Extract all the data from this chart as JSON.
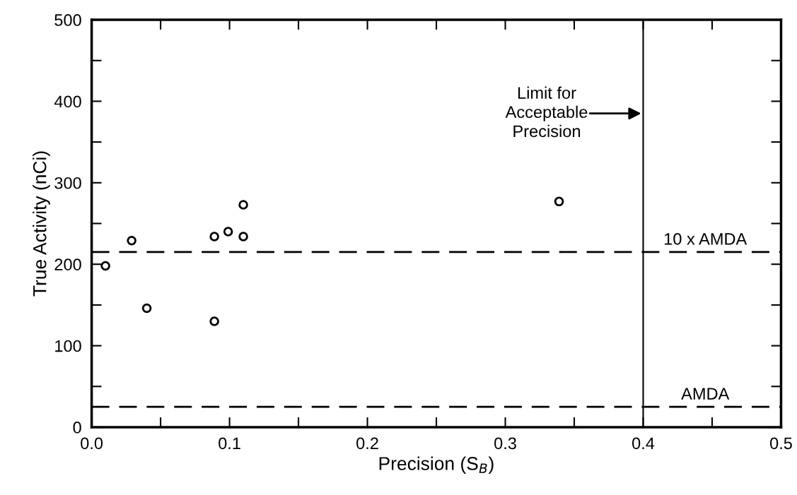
{
  "chart_data": {
    "type": "scatter",
    "xlabel": "Precision (S$_{B}$)",
    "ylabel": "True Activity (nCi)",
    "x": [
      0.01,
      0.029,
      0.04,
      0.089,
      0.089,
      0.099,
      0.11,
      0.11,
      0.339
    ],
    "values": [
      198,
      229,
      146,
      130,
      234,
      240,
      234,
      273,
      277
    ],
    "color": "#000000",
    "marker": "circle",
    "grid": false,
    "legend": false,
    "xlim": [
      0,
      0.5
    ],
    "ylim": [
      0,
      500
    ],
    "xticks": [
      {
        "value": 0,
        "label": "0.0"
      },
      {
        "value": 0.05,
        "label": null
      },
      0.1,
      {
        "value": 0.15,
        "label": null
      },
      0.2,
      {
        "value": 0.25,
        "label": null
      },
      0.3,
      {
        "value": 0.35,
        "label": null
      },
      0.4,
      {
        "value": 0.45,
        "label": null
      },
      0.5
    ],
    "yticks": [
      0,
      {
        "value": 50,
        "label": null
      },
      100,
      {
        "value": 150,
        "label": null
      },
      200,
      {
        "value": 250,
        "label": null
      },
      300,
      {
        "value": 350,
        "label": null
      },
      400,
      {
        "value": 450,
        "label": null
      },
      500
    ],
    "ref_lines": [
      {
        "axis": "y",
        "value": 215,
        "label": "10 x AMDA",
        "color": "#000000",
        "line_style": "dashed"
      },
      {
        "axis": "y",
        "value": 25,
        "label": "AMDA",
        "color": "#000000",
        "line_style": "dashed"
      },
      {
        "axis": "x",
        "value": 0.4,
        "label": "Limit for\nAcceptable\nPrecision",
        "color": "#000000",
        "line_style": "solid"
      }
    ]
  }
}
